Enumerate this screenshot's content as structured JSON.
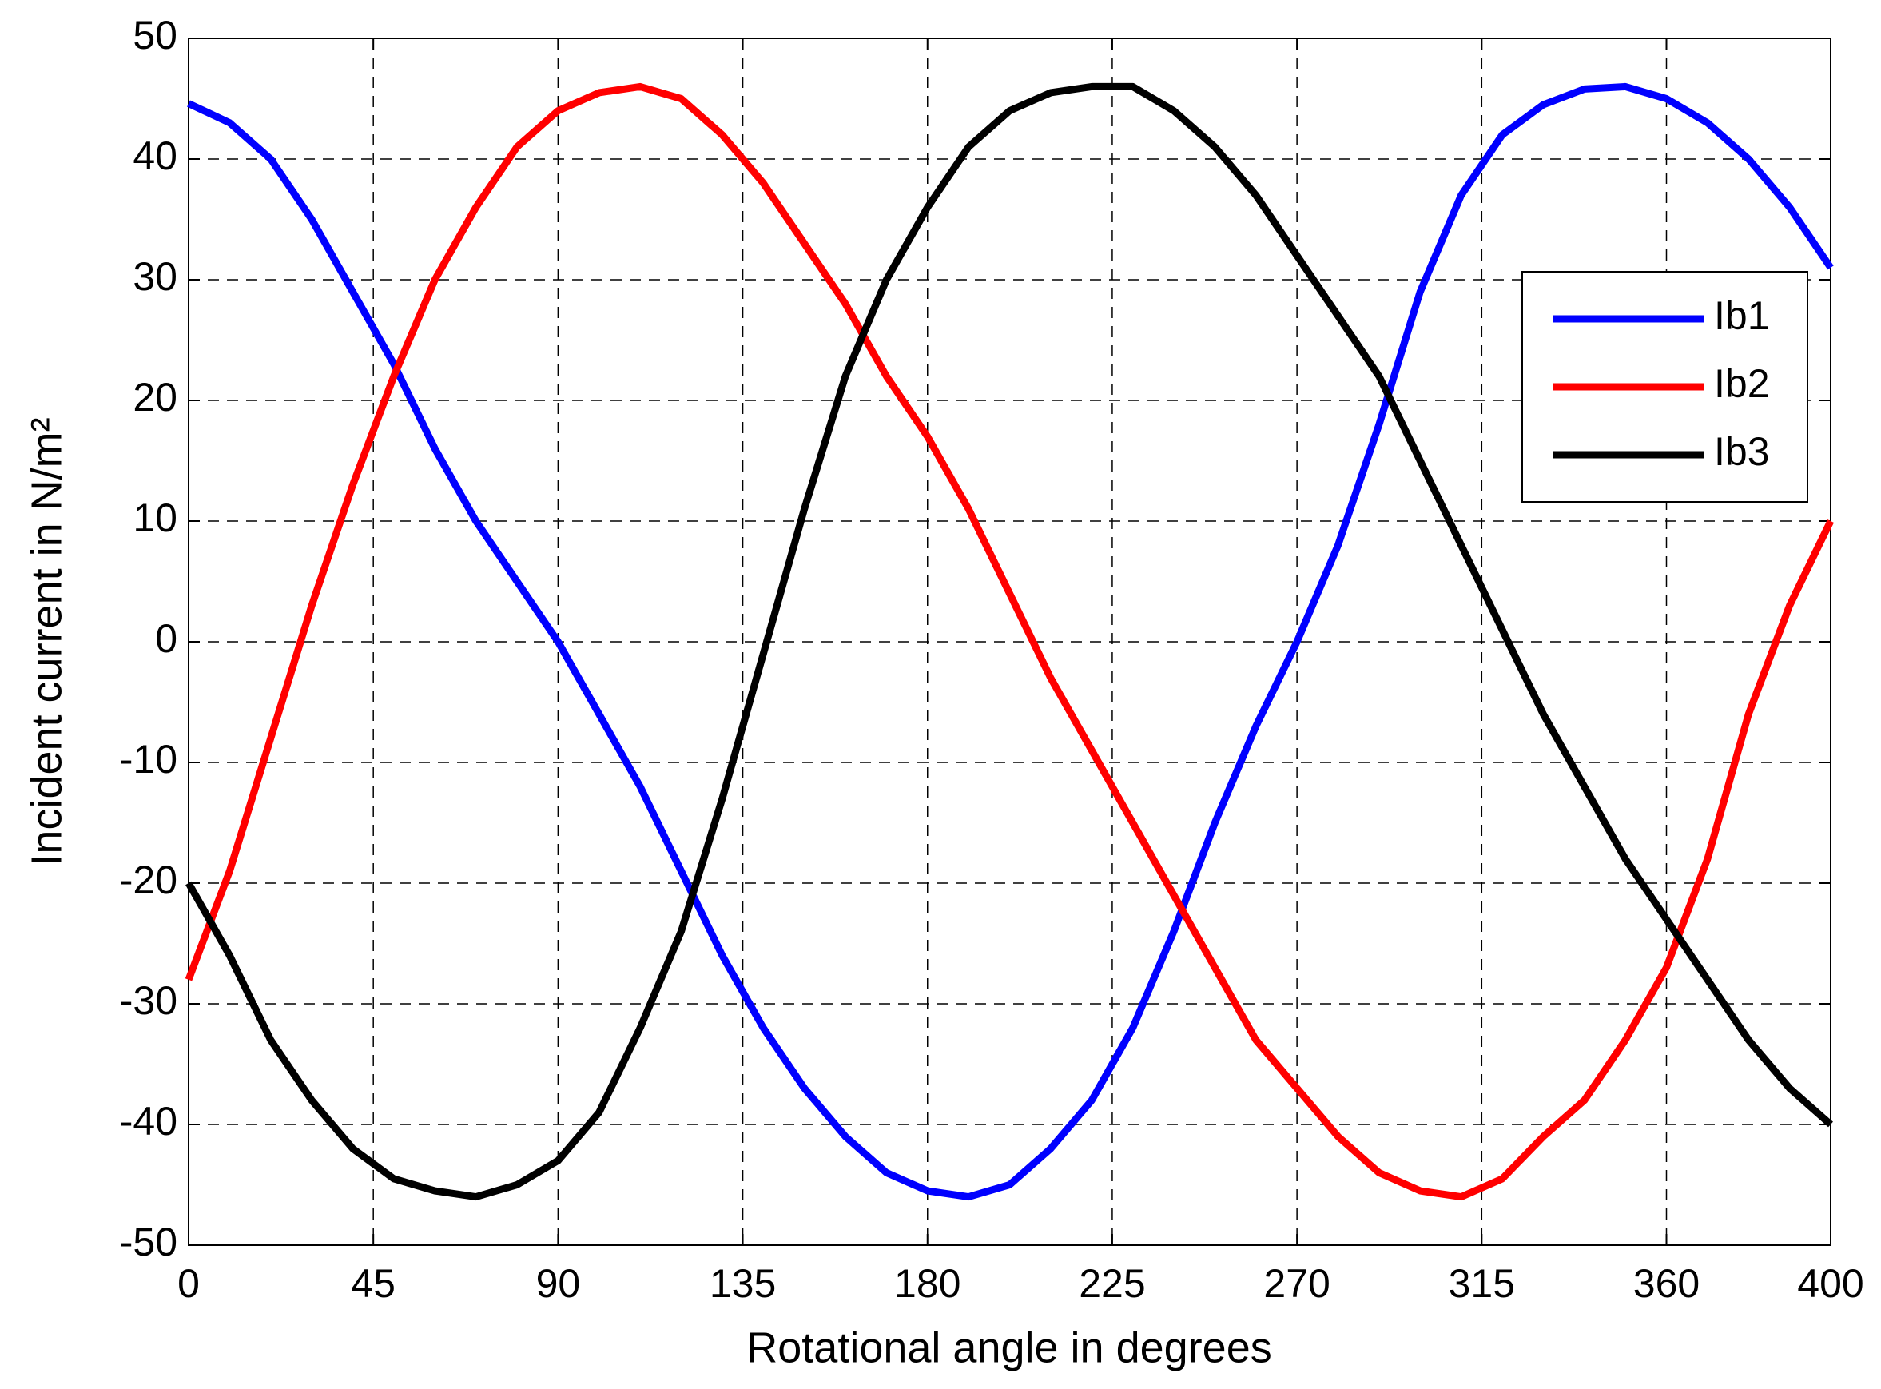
{
  "chart_data": {
    "type": "line",
    "xlabel": "Rotational angle in degrees",
    "ylabel": "Incident current in N/m²",
    "x": [
      0,
      10,
      20,
      30,
      40,
      50,
      60,
      70,
      80,
      90,
      100,
      110,
      120,
      130,
      140,
      150,
      160,
      170,
      180,
      190,
      200,
      210,
      220,
      230,
      240,
      250,
      260,
      270,
      280,
      290,
      300,
      310,
      320,
      330,
      340,
      350,
      360,
      370,
      380,
      390,
      400
    ],
    "series": [
      {
        "name": "Ib1",
        "color": "#0000ff",
        "values": [
          44.6,
          43,
          40,
          35,
          29,
          23,
          16,
          10,
          5,
          0,
          -6,
          -12,
          -19,
          -26,
          -32,
          -37,
          -41,
          -44,
          -45.5,
          -46,
          -45,
          -42,
          -38,
          -32,
          -24,
          -15,
          -7,
          0,
          8,
          18,
          29,
          37,
          42,
          44.5,
          45.8,
          46,
          45,
          43,
          40,
          36,
          31
        ]
      },
      {
        "name": "Ib2",
        "color": "#ff0000",
        "values": [
          -28,
          -19,
          -8,
          3,
          13,
          22,
          30,
          36,
          41,
          44,
          45.5,
          46,
          45,
          42,
          38,
          33,
          28,
          22,
          17,
          11,
          4,
          -3,
          -9,
          -15,
          -21,
          -27,
          -33,
          -37,
          -41,
          -44,
          -45.5,
          -46,
          -44.5,
          -41,
          -38,
          -33,
          -27,
          -18,
          -6,
          3,
          10
        ]
      },
      {
        "name": "Ib3",
        "color": "#000000",
        "values": [
          -20,
          -26,
          -33,
          -38,
          -42,
          -44.5,
          -45.5,
          -46,
          -45,
          -43,
          -39,
          -32,
          -24,
          -13,
          -1,
          11,
          22,
          30,
          36,
          41,
          44,
          45.5,
          46,
          46,
          44,
          41,
          37,
          32,
          27,
          22,
          15,
          8,
          1,
          -6,
          -12,
          -18,
          -23,
          -28,
          -33,
          -37,
          -40
        ]
      }
    ],
    "xlim": [
      0,
      400
    ],
    "xticks": [
      0,
      45,
      90,
      135,
      180,
      225,
      270,
      315,
      360,
      400
    ],
    "ylim": [
      -50,
      50
    ],
    "yticks": [
      -50,
      -40,
      -30,
      -20,
      -10,
      0,
      10,
      20,
      30,
      40,
      50
    ],
    "grid": true,
    "legend": "upper right"
  }
}
